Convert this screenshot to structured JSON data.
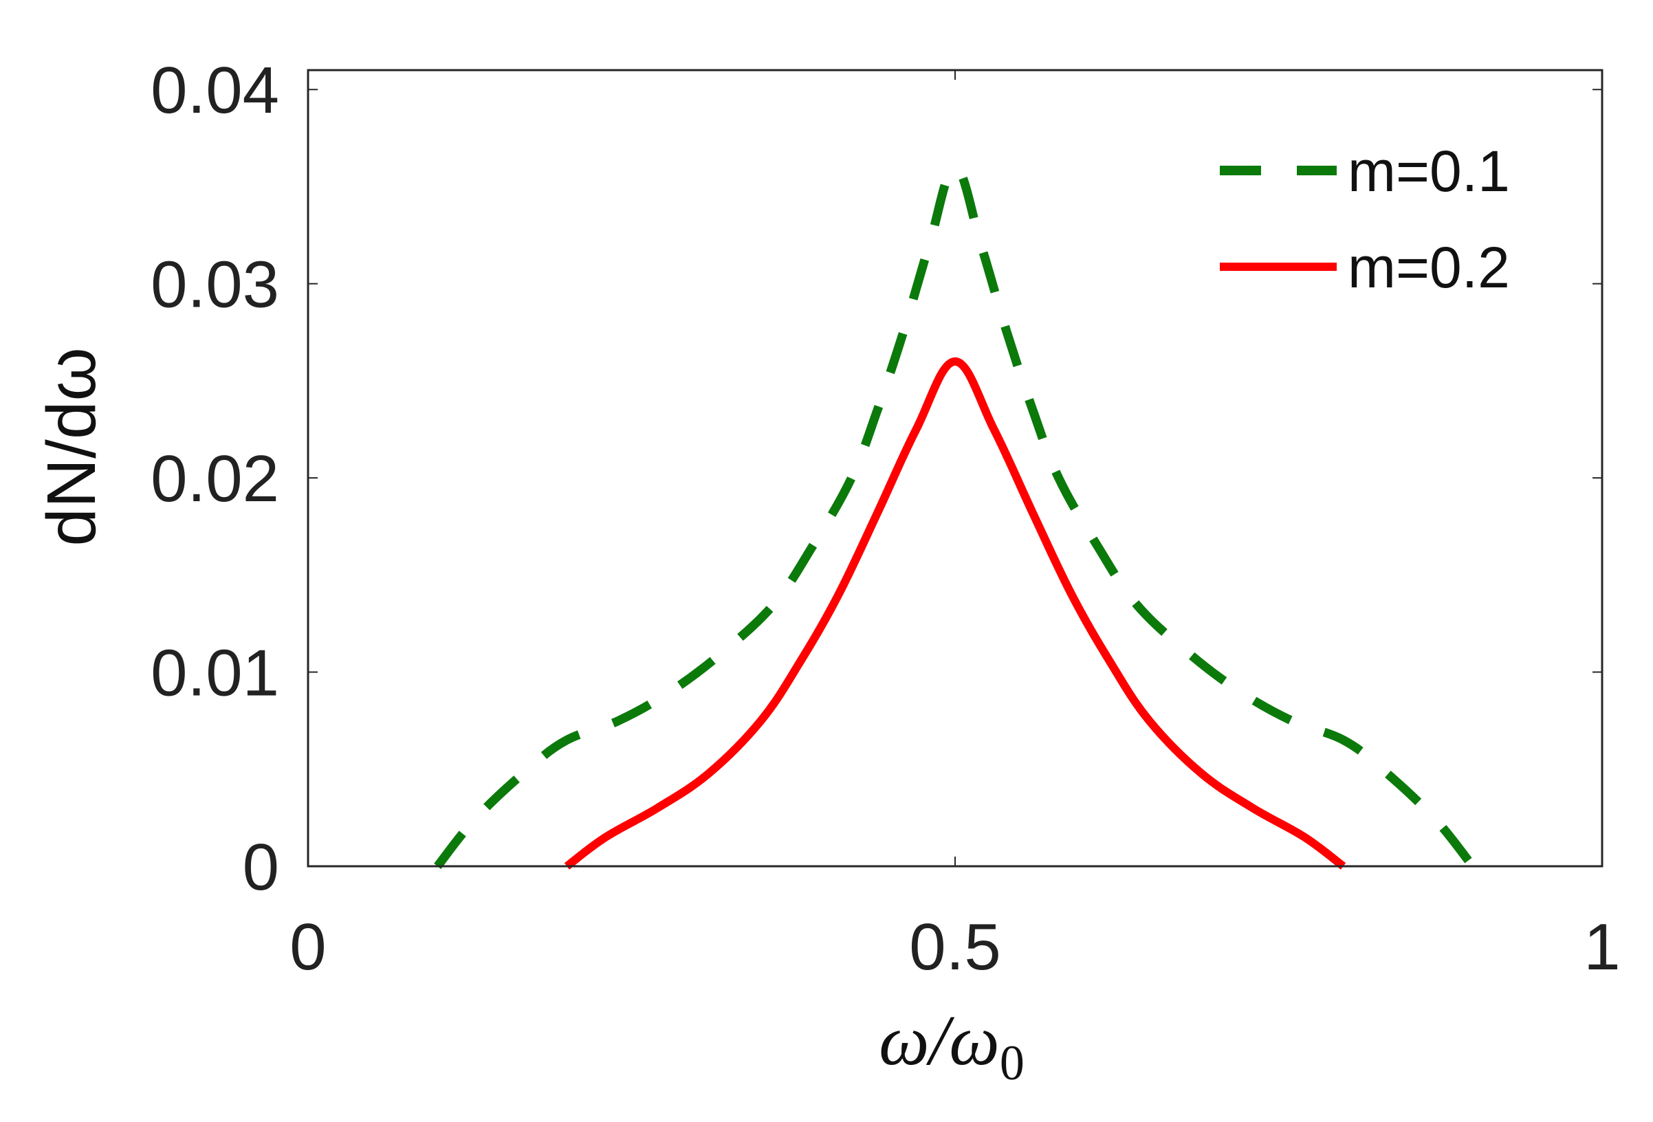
{
  "chart_data": {
    "type": "line",
    "title": "",
    "xlabel": "ω/ω",
    "xlabel_subscript": "0",
    "ylabel": "dN/dω",
    "xlim": [
      0,
      1
    ],
    "ylim": [
      0,
      0.041
    ],
    "xticks": [
      0,
      0.5,
      1
    ],
    "xtick_labels": [
      "0",
      "0.5",
      "1"
    ],
    "yticks": [
      0,
      0.01,
      0.02,
      0.03,
      0.04
    ],
    "ytick_labels": [
      "0",
      "0.01",
      "0.02",
      "0.03",
      "0.04"
    ],
    "grid": false,
    "legend_position": "top-right",
    "series": [
      {
        "name": "m=0.1",
        "color": "#0b7a0b",
        "style": "dashed",
        "x": [
          0.1,
          0.13,
          0.17,
          0.2,
          0.24,
          0.28,
          0.32,
          0.36,
          0.39,
          0.42,
          0.44,
          0.46,
          0.48,
          0.5,
          0.52,
          0.54,
          0.56,
          0.58,
          0.61,
          0.64,
          0.68,
          0.72,
          0.76,
          0.8,
          0.83,
          0.87,
          0.9
        ],
        "values": [
          0.0,
          0.0025,
          0.005,
          0.0065,
          0.0075,
          0.009,
          0.011,
          0.0135,
          0.0165,
          0.02,
          0.0235,
          0.0275,
          0.032,
          0.036,
          0.032,
          0.0275,
          0.0235,
          0.02,
          0.0165,
          0.0135,
          0.011,
          0.009,
          0.0075,
          0.0065,
          0.005,
          0.0025,
          0.0
        ]
      },
      {
        "name": "m=0.2",
        "color": "#ff0000",
        "style": "solid",
        "x": [
          0.2,
          0.23,
          0.27,
          0.31,
          0.35,
          0.38,
          0.41,
          0.44,
          0.47,
          0.5,
          0.53,
          0.56,
          0.59,
          0.62,
          0.65,
          0.69,
          0.73,
          0.77,
          0.8
        ],
        "values": [
          0.0,
          0.0015,
          0.003,
          0.0048,
          0.0075,
          0.0105,
          0.014,
          0.0182,
          0.0225,
          0.026,
          0.0225,
          0.0182,
          0.014,
          0.0105,
          0.0075,
          0.0048,
          0.003,
          0.0015,
          0.0
        ]
      }
    ]
  }
}
